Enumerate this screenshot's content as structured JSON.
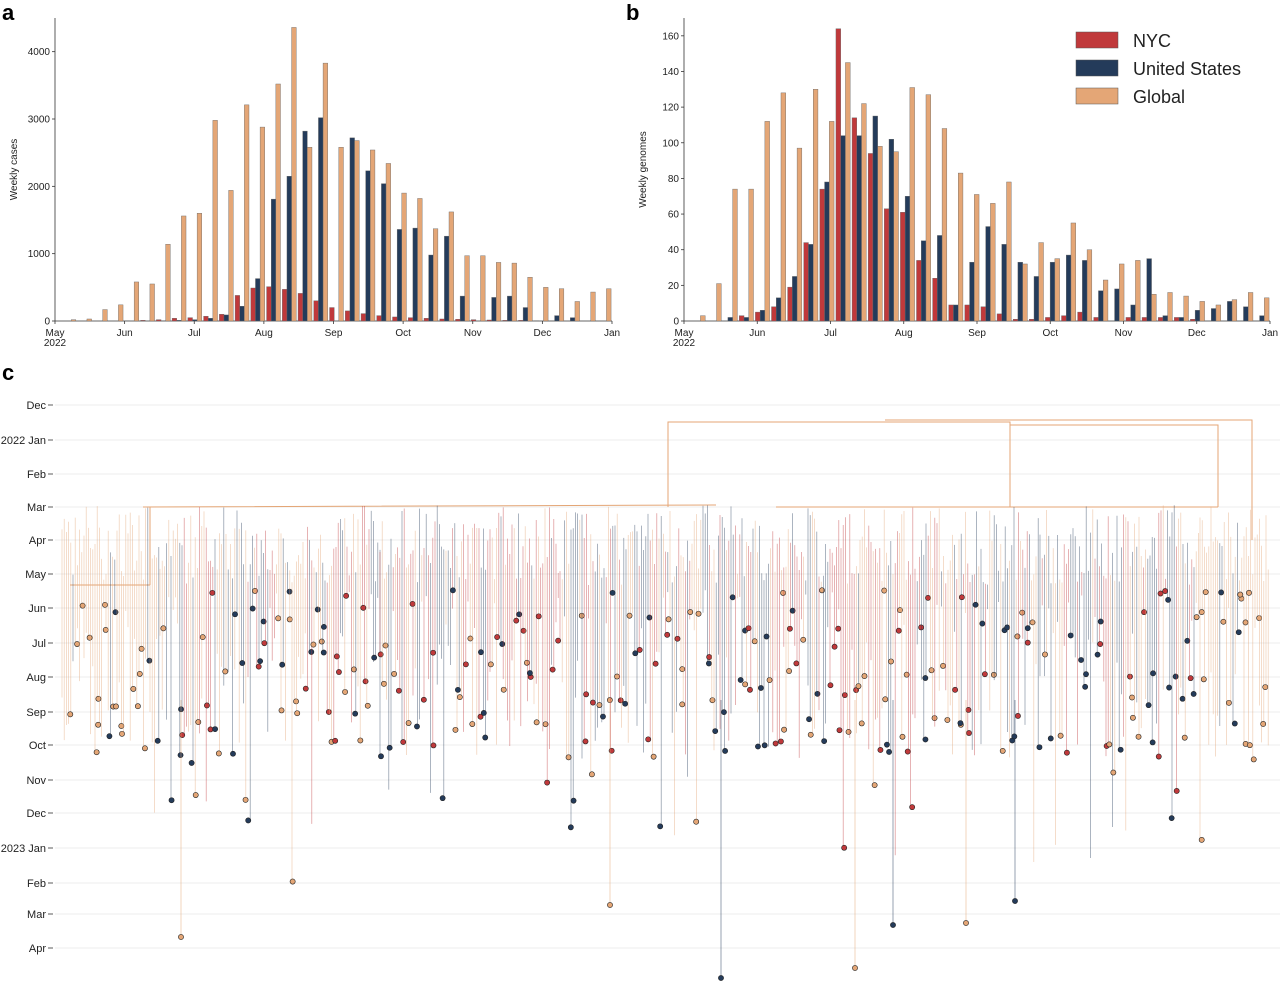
{
  "panels": {
    "a": "a",
    "b": "b",
    "c": "c"
  },
  "colors": {
    "nyc": "#c0393b",
    "us": "#243b5a",
    "global": "#e4a676",
    "grid": "#e6e6e6"
  },
  "legend": [
    {
      "name": "NYC",
      "color": "#c0393b"
    },
    {
      "name": "United States",
      "color": "#243b5a"
    },
    {
      "name": "Global",
      "color": "#e4a676"
    }
  ],
  "chart_data": [
    {
      "id": "a",
      "type": "bar",
      "ylabel": "Weekly cases",
      "ylim": [
        0,
        4500
      ],
      "yticks": [
        0,
        1000,
        2000,
        3000,
        4000
      ],
      "xticks": [
        "May\n2022",
        "Jun",
        "Jul",
        "Aug",
        "Sep",
        "Oct",
        "Nov",
        "Dec",
        "Jan"
      ],
      "series": [
        {
          "name": "NYC",
          "values": [
            0,
            0,
            0,
            0,
            5,
            10,
            20,
            40,
            50,
            70,
            100,
            380,
            490,
            510,
            470,
            410,
            300,
            200,
            150,
            110,
            80,
            60,
            50,
            40,
            30,
            25,
            20,
            15,
            10,
            10,
            5,
            5,
            0
          ]
        },
        {
          "name": "United States",
          "values": [
            0,
            0,
            0,
            0,
            0,
            0,
            5,
            10,
            20,
            40,
            90,
            220,
            630,
            1810,
            2150,
            2820,
            3020,
            0,
            2720,
            2230,
            2040,
            1360,
            1380,
            980,
            1260,
            370,
            0,
            350,
            370,
            200,
            0,
            80,
            50
          ]
        },
        {
          "name": "Global",
          "values": [
            20,
            30,
            170,
            240,
            580,
            550,
            1140,
            1560,
            1600,
            2980,
            1940,
            3210,
            2880,
            3520,
            4360,
            2580,
            3830,
            2580,
            2680,
            2540,
            2340,
            1900,
            1820,
            1370,
            1620,
            970,
            970,
            870,
            860,
            650,
            500,
            480,
            290,
            430,
            480
          ]
        }
      ]
    },
    {
      "id": "b",
      "type": "bar",
      "ylabel": "Weekly genomes",
      "ylim": [
        0,
        170
      ],
      "yticks": [
        0,
        20,
        40,
        60,
        80,
        100,
        120,
        140,
        160
      ],
      "xticks": [
        "May\n2022",
        "Jun",
        "Jul",
        "Aug",
        "Sep",
        "Oct",
        "Nov",
        "Dec",
        "Jan"
      ],
      "series": [
        {
          "name": "NYC",
          "values": [
            0,
            0,
            0,
            3,
            5,
            8,
            19,
            44,
            74,
            164,
            114,
            94,
            63,
            61,
            34,
            24,
            9,
            9,
            8,
            4,
            1,
            1,
            2,
            3,
            5,
            2,
            0,
            2,
            2,
            2,
            2,
            1,
            0,
            0,
            0
          ]
        },
        {
          "name": "United States",
          "values": [
            0,
            0,
            2,
            2,
            6,
            13,
            25,
            43,
            78,
            104,
            104,
            115,
            102,
            70,
            45,
            48,
            9,
            33,
            53,
            43,
            33,
            25,
            33,
            37,
            34,
            17,
            18,
            9,
            35,
            3,
            2,
            6,
            7,
            11,
            8,
            3
          ]
        },
        {
          "name": "Global",
          "values": [
            3,
            21,
            74,
            74,
            112,
            128,
            97,
            130,
            112,
            145,
            122,
            98,
            95,
            131,
            127,
            108,
            83,
            71,
            66,
            78,
            32,
            44,
            35,
            55,
            40,
            23,
            32,
            34,
            15,
            16,
            14,
            11,
            9,
            12,
            16,
            13
          ]
        }
      ]
    },
    {
      "id": "c",
      "type": "scatter",
      "yticks": [
        "Dec",
        "2022 Jan",
        "Feb",
        "Mar",
        "Apr",
        "May",
        "Jun",
        "Jul",
        "Aug",
        "Sep",
        "Oct",
        "Nov",
        "Dec",
        "2023 Jan",
        "Feb",
        "Mar",
        "Apr"
      ]
    }
  ]
}
